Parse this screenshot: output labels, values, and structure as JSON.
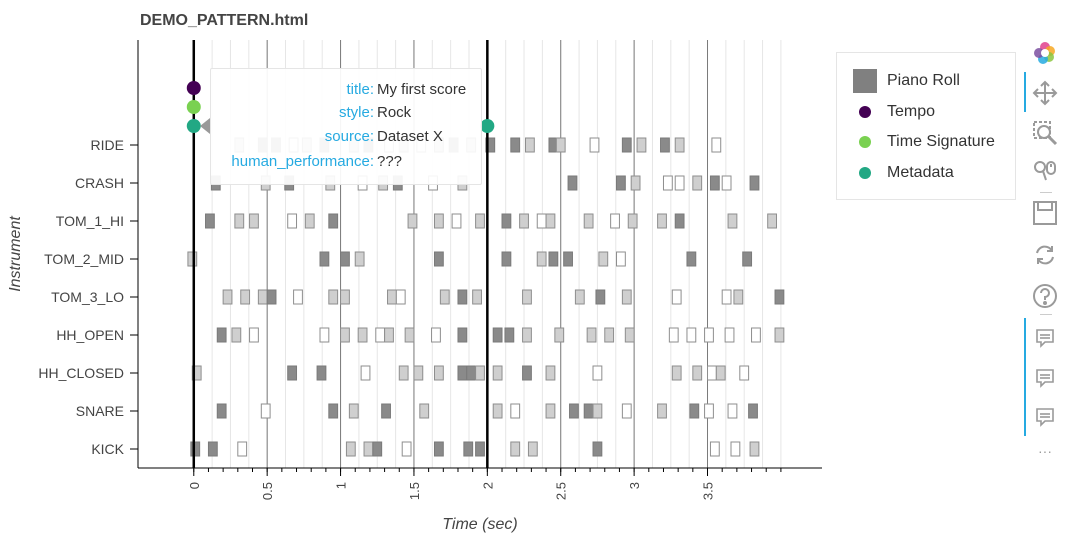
{
  "page": {
    "title": "DEMO_PATTERN.html"
  },
  "chart_data": {
    "type": "piano-roll",
    "xlabel": "Time (sec)",
    "ylabel": "Instrument",
    "xlim": [
      -0.38,
      4.28
    ],
    "x_ticks": [
      "0",
      "0.5",
      "1",
      "1.5",
      "2",
      "2.5",
      "3",
      "3.5"
    ],
    "x_tick_values": [
      0,
      0.5,
      1,
      1.5,
      2,
      2.5,
      3,
      3.5
    ],
    "instruments": [
      "RIDE",
      "CRASH",
      "TOM_1_HI",
      "TOM_2_MID",
      "TOM_3_LO",
      "HH_OPEN",
      "HH_CLOSED",
      "SNARE",
      "KICK"
    ],
    "grid": {
      "beat_lines": [
        0.5,
        1,
        1.5,
        2.5,
        3,
        3.5
      ],
      "bar_lines": [
        0,
        2
      ],
      "sixteenth_step": 0.125,
      "subdivision_lines_until": 4.0
    },
    "note_duration": 0.06,
    "notes": {
      "RIDE": [
        [
          0.28,
          0.5
        ],
        [
          0.44,
          0.9
        ],
        [
          0.53,
          0.9
        ],
        [
          0.65,
          0.3
        ],
        [
          0.74,
          0.5
        ],
        [
          0.86,
          0.9
        ],
        [
          1.06,
          0.5
        ],
        [
          1.16,
          0.9
        ],
        [
          1.3,
          0.3
        ],
        [
          1.4,
          0.5
        ],
        [
          1.52,
          0.3
        ],
        [
          1.64,
          0.5
        ],
        [
          1.74,
          0.9
        ],
        [
          1.86,
          0.5
        ],
        [
          1.99,
          0.9
        ],
        [
          2.16,
          0.9
        ],
        [
          2.26,
          0.5
        ],
        [
          2.42,
          0.9
        ],
        [
          2.47,
          0.5
        ],
        [
          2.7,
          0.3
        ],
        [
          2.92,
          0.9
        ],
        [
          3.02,
          0.5
        ],
        [
          3.18,
          0.9
        ],
        [
          3.28,
          0.5
        ],
        [
          3.53,
          0.3
        ]
      ],
      "CRASH": [
        [
          0.12,
          0.9
        ],
        [
          0.46,
          0.5
        ],
        [
          0.62,
          0.9
        ],
        [
          0.9,
          0.5
        ],
        [
          1.12,
          0.3
        ],
        [
          1.26,
          0.5
        ],
        [
          1.36,
          0.9
        ],
        [
          1.6,
          0.3
        ],
        [
          1.8,
          0.5
        ],
        [
          2.55,
          0.9
        ],
        [
          2.88,
          0.9
        ],
        [
          2.98,
          0.5
        ],
        [
          3.2,
          0.3
        ],
        [
          3.28,
          0.3
        ],
        [
          3.4,
          0.5
        ],
        [
          3.52,
          0.9
        ],
        [
          3.6,
          0.3
        ],
        [
          3.79,
          0.9
        ]
      ],
      "TOM_1_HI": [
        [
          0.08,
          0.9
        ],
        [
          0.28,
          0.5
        ],
        [
          0.38,
          0.5
        ],
        [
          0.64,
          0.3
        ],
        [
          0.76,
          0.5
        ],
        [
          0.92,
          0.9
        ],
        [
          1.46,
          0.5
        ],
        [
          1.64,
          0.5
        ],
        [
          1.76,
          0.3
        ],
        [
          1.92,
          0.5
        ],
        [
          2.1,
          0.9
        ],
        [
          2.22,
          0.5
        ],
        [
          2.34,
          0.3
        ],
        [
          2.4,
          0.5
        ],
        [
          2.66,
          0.5
        ],
        [
          2.84,
          0.3
        ],
        [
          2.96,
          0.5
        ],
        [
          3.16,
          0.5
        ],
        [
          3.28,
          0.9
        ],
        [
          3.64,
          0.5
        ],
        [
          3.91,
          0.5
        ]
      ],
      "TOM_2_MID": [
        [
          -0.04,
          0.5
        ],
        [
          0.86,
          0.9
        ],
        [
          1.0,
          0.9
        ],
        [
          1.1,
          0.5
        ],
        [
          1.64,
          0.9
        ],
        [
          2.1,
          0.9
        ],
        [
          2.34,
          0.5
        ],
        [
          2.42,
          0.9
        ],
        [
          2.52,
          0.9
        ],
        [
          2.76,
          0.5
        ],
        [
          2.88,
          0.3
        ],
        [
          3.36,
          0.9
        ],
        [
          3.74,
          0.9
        ]
      ],
      "TOM_3_LO": [
        [
          0.2,
          0.5
        ],
        [
          0.32,
          0.5
        ],
        [
          0.44,
          0.5
        ],
        [
          0.5,
          0.9
        ],
        [
          0.68,
          0.3
        ],
        [
          0.92,
          0.5
        ],
        [
          1.0,
          0.5
        ],
        [
          1.32,
          0.5
        ],
        [
          1.38,
          0.3
        ],
        [
          1.68,
          0.5
        ],
        [
          1.8,
          0.9
        ],
        [
          1.9,
          0.5
        ],
        [
          2.24,
          0.5
        ],
        [
          2.6,
          0.5
        ],
        [
          2.74,
          0.9
        ],
        [
          2.92,
          0.5
        ],
        [
          3.26,
          0.3
        ],
        [
          3.6,
          0.3
        ],
        [
          3.68,
          0.5
        ],
        [
          3.96,
          0.9
        ]
      ],
      "HH_OPEN": [
        [
          0.16,
          0.9
        ],
        [
          0.26,
          0.5
        ],
        [
          0.38,
          0.3
        ],
        [
          0.86,
          0.3
        ],
        [
          1.0,
          0.5
        ],
        [
          1.12,
          0.5
        ],
        [
          1.24,
          0.3
        ],
        [
          1.3,
          0.5
        ],
        [
          1.44,
          0.5
        ],
        [
          1.62,
          0.3
        ],
        [
          1.8,
          0.9
        ],
        [
          2.04,
          0.9
        ],
        [
          2.12,
          0.9
        ],
        [
          2.24,
          0.5
        ],
        [
          2.46,
          0.5
        ],
        [
          2.68,
          0.5
        ],
        [
          2.8,
          0.5
        ],
        [
          2.94,
          0.5
        ],
        [
          3.24,
          0.3
        ],
        [
          3.36,
          0.3
        ],
        [
          3.48,
          0.3
        ],
        [
          3.62,
          0.3
        ],
        [
          3.8,
          0.3
        ],
        [
          3.96,
          0.5
        ]
      ],
      "HH_CLOSED": [
        [
          -0.01,
          0.5
        ],
        [
          0.64,
          0.9
        ],
        [
          0.84,
          0.9
        ],
        [
          1.14,
          0.3
        ],
        [
          1.4,
          0.5
        ],
        [
          1.5,
          0.5
        ],
        [
          1.64,
          0.5
        ],
        [
          1.8,
          0.9
        ],
        [
          1.86,
          0.9
        ],
        [
          1.92,
          0.5
        ],
        [
          2.04,
          0.5
        ],
        [
          2.24,
          0.9
        ],
        [
          2.4,
          0.5
        ],
        [
          2.72,
          0.3
        ],
        [
          3.26,
          0.5
        ],
        [
          3.4,
          0.5
        ],
        [
          3.5,
          0.3
        ],
        [
          3.56,
          0.5
        ],
        [
          3.72,
          0.3
        ]
      ],
      "SNARE": [
        [
          0.16,
          0.9
        ],
        [
          0.46,
          0.3
        ],
        [
          0.92,
          0.9
        ],
        [
          1.06,
          0.5
        ],
        [
          1.28,
          0.9
        ],
        [
          1.54,
          0.5
        ],
        [
          2.04,
          0.5
        ],
        [
          2.16,
          0.3
        ],
        [
          2.4,
          0.5
        ],
        [
          2.56,
          0.9
        ],
        [
          2.66,
          0.9
        ],
        [
          2.72,
          0.5
        ],
        [
          2.92,
          0.3
        ],
        [
          3.16,
          0.5
        ],
        [
          3.38,
          0.9
        ],
        [
          3.48,
          0.3
        ],
        [
          3.64,
          0.3
        ],
        [
          3.78,
          0.9
        ]
      ],
      "KICK": [
        [
          -0.02,
          0.9
        ],
        [
          0.1,
          0.9
        ],
        [
          0.3,
          0.3
        ],
        [
          1.04,
          0.5
        ],
        [
          1.16,
          0.5
        ],
        [
          1.22,
          0.9
        ],
        [
          1.42,
          0.3
        ],
        [
          1.64,
          0.9
        ],
        [
          1.84,
          0.9
        ],
        [
          1.92,
          0.9
        ],
        [
          2.16,
          0.5
        ],
        [
          2.28,
          0.5
        ],
        [
          2.72,
          0.9
        ],
        [
          3.52,
          0.3
        ],
        [
          3.66,
          0.3
        ],
        [
          3.79,
          0.5
        ]
      ]
    },
    "markers": [
      {
        "series": "Tempo",
        "x": 0,
        "level": 1
      },
      {
        "series": "Time Signature",
        "x": 0,
        "level": 2
      },
      {
        "series": "Metadata",
        "x": 0,
        "level": 3
      },
      {
        "series": "Metadata",
        "x": 2,
        "level": 3
      }
    ],
    "legend": {
      "placement": "right",
      "items": [
        {
          "label": "Piano Roll",
          "shape": "square",
          "color": "#808080"
        },
        {
          "label": "Tempo",
          "shape": "circle",
          "color": "#440154"
        },
        {
          "label": "Time Signature",
          "shape": "circle",
          "color": "#7ad151"
        },
        {
          "label": "Metadata",
          "shape": "circle",
          "color": "#22a884"
        }
      ]
    }
  },
  "tooltip": {
    "rows": [
      {
        "key": "title:",
        "value": "My first score"
      },
      {
        "key": "style:",
        "value": "Rock"
      },
      {
        "key": "source:",
        "value": "Dataset X"
      },
      {
        "key": "human_performance:",
        "value": "???"
      }
    ]
  },
  "toolbar": {
    "tools": [
      {
        "name": "bokeh-logo-icon"
      },
      {
        "name": "pan-icon",
        "active": true
      },
      {
        "name": "box-zoom-icon"
      },
      {
        "name": "wheel-zoom-icon"
      },
      {
        "name": "save-icon"
      },
      {
        "name": "reset-icon"
      },
      {
        "name": "help-icon"
      },
      {
        "name": "hover-tool-1-icon",
        "active": true
      },
      {
        "name": "hover-tool-2-icon",
        "active": true
      },
      {
        "name": "hover-tool-3-icon",
        "active": true
      }
    ],
    "more_label": "···"
  }
}
